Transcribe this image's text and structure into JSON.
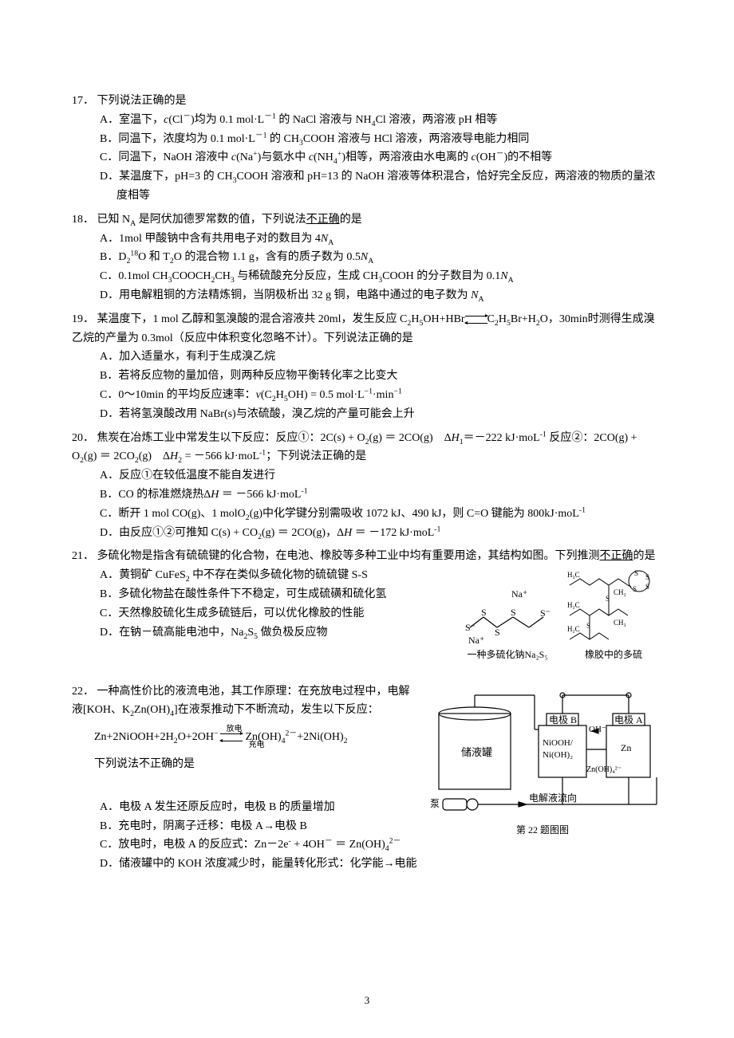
{
  "page_number": "3",
  "questions": [
    {
      "num": "17．",
      "stem": "下列说法正确的是",
      "options": [
        {
          "label": "A．",
          "html": "室温下，<span class='italic'>c</span>(Cl<sup>－</sup>)均为 0.1 mol·L<sup>－1</sup> 的 NaCl 溶液与 NH<sub>4</sub>Cl 溶液，两溶液 pH 相等"
        },
        {
          "label": "B．",
          "html": "同温下，浓度均为 0.1 mol·L<sup>－1</sup> 的 CH<sub>3</sub>COOH 溶液与 HCl 溶液，两溶液导电能力相同"
        },
        {
          "label": "C．",
          "html": "同温下，NaOH 溶液中 <span class='italic'>c</span>(Na<sup>+</sup>)与氨水中 <span class='italic'>c</span>(NH<sub>4</sub><sup>+</sup>)相等，两溶液由水电离的 <span class='italic'>c</span>(OH<sup>－</sup>)的不相等"
        },
        {
          "label": "D．",
          "html": "某温度下，pH=3 的 CH<sub>3</sub>COOH 溶液和 pH=13 的 NaOH 溶液等体积混合，恰好完全反应，两溶液的物质的量浓度相等"
        }
      ]
    },
    {
      "num": "18．",
      "stem_html": "已知 N<sub>A</sub> 是阿伏加德罗常数的值，下列说法<u>不正确</u>的是",
      "options": [
        {
          "label": "A．",
          "html": "1mol 甲酸钠中含有共用电子对的数目为 4<span class='italic'>N</span><sub>A</sub>"
        },
        {
          "label": "B．",
          "html": "D<sub>2</sub><sup>18</sup>O 和 T<sub>2</sub>O 的混合物 1.1 g，含有的质子数为 0.5<span class='italic'>N</span><sub>A</sub>"
        },
        {
          "label": "C．",
          "html": "0.1mol CH<sub>3</sub>COOCH<sub>2</sub>CH<sub>3</sub> 与稀硫酸充分反应，生成 CH<sub>3</sub>COOH 的分子数目为 0.1<span class='italic'>N</span><sub>A</sub>"
        },
        {
          "label": "D．",
          "html": "用电解粗铜的方法精炼铜，当阴极析出 32 g 铜，电路中通过的电子数为 <span class='italic'>N</span><sub>A</sub>"
        }
      ]
    },
    {
      "num": "19．",
      "stem_html": "某温度下，1 mol 乙醇和氢溴酸的混合溶液共 20ml，发生反应 C<sub>2</sub>H<sub>5</sub>OH+HBr<span class='equil-arrow'><span class='top'></span><span class='bot'></span></span>C<sub>2</sub>H<sub>5</sub>Br+H<sub>2</sub>O，30min时测得生成溴乙烷的产量为 0.3mol（反应中体积变化忽略不计）。下列说法正确的是",
      "options": [
        {
          "label": "A．",
          "html": "加入适量水，有利于生成溴乙烷"
        },
        {
          "label": "B．",
          "html": "若将反应物的量加倍，则两种反应物平衡转化率之比变大"
        },
        {
          "label": "C．",
          "html": "0～10min 的平均反应速率：<span class='italic'>v</span>(C<sub>2</sub>H<sub>5</sub>OH) = 0.5 mol·L<sup>−1</sup>·min<sup>−1</sup>"
        },
        {
          "label": "D．",
          "html": "若将氢溴酸改用 NaBr(s)与浓硫酸，溴乙烷的产量可能会上升"
        }
      ]
    },
    {
      "num": "20．",
      "stem_html": "焦炭在冶炼工业中常发生以下反应：反应①：2C(s) + O<sub>2</sub>(g) ＝ 2CO(g)　Δ<span class='italic'>H</span><sub>1</sub>＝－222 kJ·moL<sup>-1</sup> 反应②：2CO(g) + O<sub>2</sub>(g) ＝ 2CO<sub>2</sub>(g)　Δ<span class='italic'>H</span><sub>2</sub> = －566 kJ·moL<sup>-1</sup>；下列说法正确的是",
      "options": [
        {
          "label": "A．",
          "html": "反应①在较低温度不能自发进行"
        },
        {
          "label": "B．",
          "html": "CO 的标准燃烧热Δ<span class='italic'>H</span> ＝ －566 kJ·moL<sup>-1</sup>"
        },
        {
          "label": "C．",
          "html": "断开 1 mol CO(g)、1 molO<sub>2</sub>(g)中化学键分别需吸收 1072 kJ、490 kJ，则 C=O 键能为 800kJ·moL<sup>-1</sup>"
        },
        {
          "label": "D．",
          "html": "由反应①②可推知 C(s) + CO<sub>2</sub>(g) ＝ 2CO(g)，Δ<span class='italic'>H</span> ＝ －172 kJ·moL<sup>-1</sup>"
        }
      ]
    },
    {
      "num": "21．",
      "stem_html": "多硫化物是指含有硫硫键的化合物，在电池、橡胶等多种工业中均有重要用途，其结构如图。下列推测<u>不正确</u>的是",
      "options": [
        {
          "label": "A．",
          "html": "黄铜矿 CuFeS<sub>2</sub> 中不存在类似多硫化物的硫硫键 S-S"
        },
        {
          "label": "B．",
          "html": "多硫化物盐在酸性条件下不稳定，可生成硫磺和硫化氢"
        },
        {
          "label": "C．",
          "html": "天然橡胶硫化生成多硫链后，可以优化橡胶的性能"
        },
        {
          "label": "D．",
          "html": "在钠－硫高能电池中，Na<sub>2</sub>S<sub>5</sub> 做负极反应物"
        }
      ],
      "figure": {
        "caption_left": "一种多硫化钠Na₂S₅",
        "caption_right": "橡胶中的多硫",
        "na2s5": {
          "atoms": [
            "S⁻",
            "S",
            "S",
            "S",
            "S⁻"
          ],
          "cations": [
            "Na⁺",
            "Na⁺"
          ]
        },
        "rubber_labels": [
          "H₃C",
          "CH₃",
          "H₃C",
          "CH₃",
          "H₃C",
          "S",
          "S",
          "S",
          "S",
          "S",
          "S"
        ]
      }
    },
    {
      "num": "22．",
      "stem_html": "一种高性价比的液流电池，其工作原理：在充放电过程中，电解液[KOH、K<sub>2</sub>Zn(OH)<sub>4</sub>]在液泵推动下不断流动，发生以下反应：",
      "equation_html": "Zn+2NiOOH+2H<sub>2</sub>O+2OH<sup>−</sup><span class='equil-stack'><span class='t'>放电</span><span class='equil-arrow'><span class='top'></span><span class='bot'></span></span><span class='b'>充电</span></span>Zn(OH)<sub>4</sub><sup>2－</sup>+2Ni(OH)<sub>2</sub>",
      "sub_stem": "下列说法不正确的是",
      "options": [
        {
          "label": "A．",
          "html": "电极 A 发生还原反应时，电极 B 的质量增加"
        },
        {
          "label": "B．",
          "html": "充电时，阴离子迁移：电极 A→电极 B"
        },
        {
          "label": "C．",
          "html": "放电时，电极 A 的反应式：Zn－2e<sup>-</sup> + 4OH<sup>－</sup> ＝ Zn(OH)<sub>4</sub><sup>2－</sup>"
        },
        {
          "label": "D．",
          "html": "储液罐中的 KOH 浓度减少时，能量转化形式：化学能→电能"
        }
      ],
      "figure": {
        "labels": {
          "tank": "储液罐",
          "pump": "泵",
          "flow": "电解液流向",
          "electrodeB": "电极 B",
          "electrodeA": "电极 A",
          "nio": "NiOOH/",
          "nioh": "Ni(OH)₂",
          "zn": "Zn",
          "oh": "OH⁻",
          "znoh": "Zn(OH)₄²⁻",
          "caption": "第 22 题图图"
        }
      }
    }
  ]
}
